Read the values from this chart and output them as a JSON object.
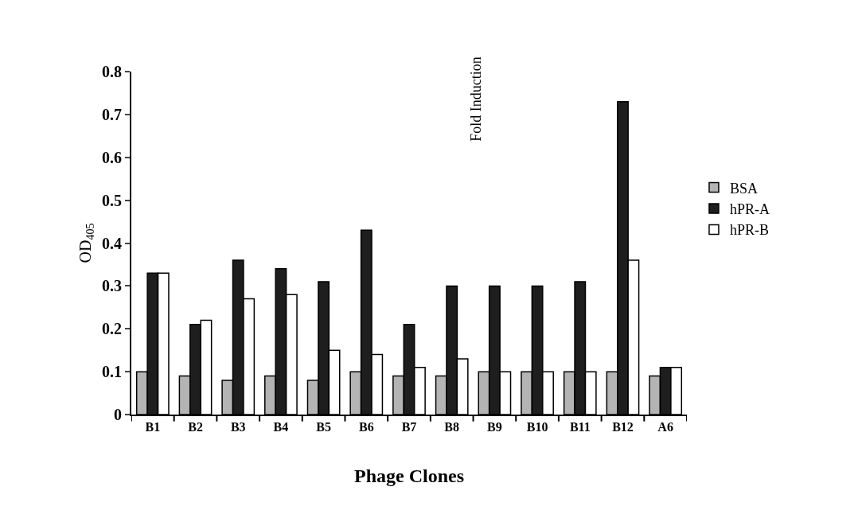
{
  "chart_data": {
    "type": "bar",
    "xlabel": "Phage Clones",
    "ylabel": "OD$_{405}$",
    "annotations": [
      "Fold Induction"
    ],
    "categories": [
      "B1",
      "B2",
      "B3",
      "B4",
      "B5",
      "B6",
      "B7",
      "B8",
      "B9",
      "B10",
      "B11",
      "B12",
      "A6"
    ],
    "series": [
      {
        "name": "BSA",
        "color": "#b4b4b4",
        "values": [
          0.1,
          0.09,
          0.08,
          0.09,
          0.08,
          0.1,
          0.09,
          0.09,
          0.1,
          0.1,
          0.1,
          0.1,
          0.09
        ]
      },
      {
        "name": "hPR-A",
        "color": "#1e1e1e",
        "values": [
          0.33,
          0.21,
          0.36,
          0.34,
          0.31,
          0.43,
          0.21,
          0.3,
          0.3,
          0.3,
          0.31,
          0.73,
          0.11
        ]
      },
      {
        "name": "hPR-B",
        "color": "#ffffff",
        "values": [
          0.33,
          0.22,
          0.27,
          0.28,
          0.15,
          0.14,
          0.11,
          0.13,
          0.1,
          0.1,
          0.1,
          0.36,
          0.11
        ]
      }
    ],
    "ylim": [
      0,
      0.8
    ],
    "yticks": [
      0,
      0.1,
      0.2,
      0.3,
      0.4,
      0.5,
      0.6,
      0.7,
      0.8
    ],
    "grid": false,
    "legend": "right"
  }
}
